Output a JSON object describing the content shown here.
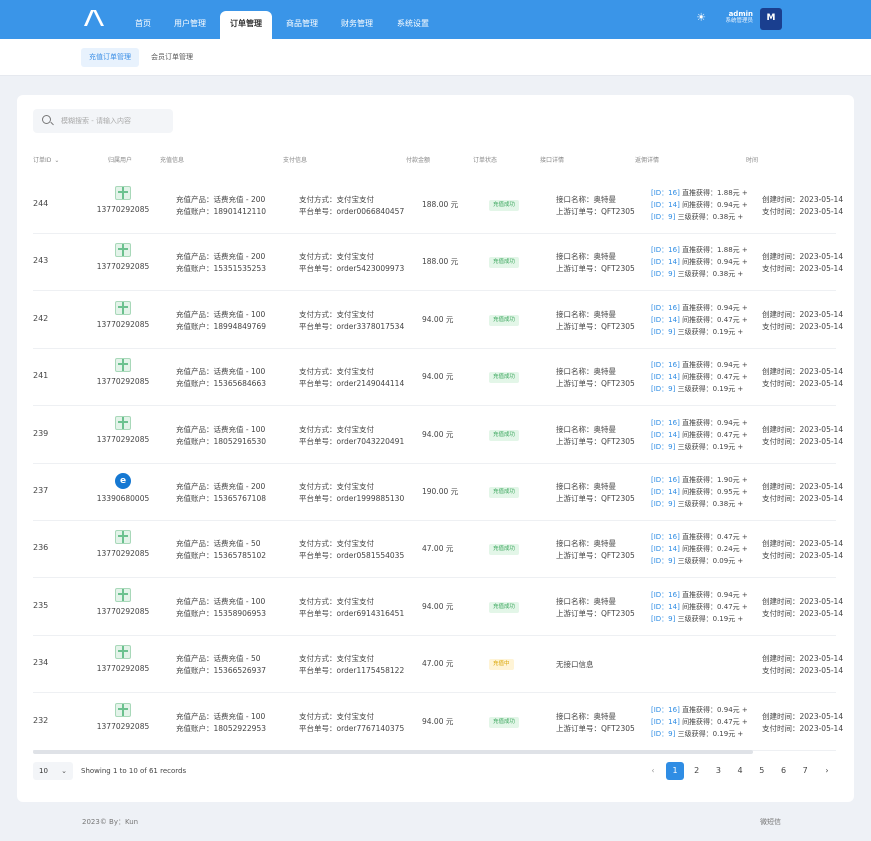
{
  "nav": {
    "items": [
      "首页",
      "用户管理",
      "订单管理",
      "商品管理",
      "财务管理",
      "系统设置"
    ],
    "active_index": 2
  },
  "user": {
    "name": "admin",
    "role": "系统管理员",
    "avatar_text": "M"
  },
  "subnav": {
    "tabs": [
      "充值订单管理",
      "会员订单管理"
    ],
    "active_index": 0
  },
  "search": {
    "placeholder": "模糊搜索 - 请输入内容",
    "value": ""
  },
  "table": {
    "headers": {
      "id": "订单ID",
      "user": "归属用户",
      "info": "充值信息",
      "pay": "支付信息",
      "amount": "付款金额",
      "status": "订单状态",
      "api": "接口详情",
      "rebate": "返佣详情",
      "time": "时间"
    },
    "rows": [
      {
        "id": "244",
        "user_icon": "gift-icon",
        "phone": "13770292085",
        "product": "充值产品：话费充值 - 200",
        "account": "充值账户：18901412110",
        "method": "支付方式：支付宝支付",
        "order_no": "平台单号：order0066840457",
        "amount": "188.00 元",
        "status": "充值成功",
        "status_type": "ok",
        "api_name": "接口名称：奥特曼",
        "api_order": "上游订单号：QFT2305",
        "r1_id": "[ID：16]",
        "r1": "直推获得：1.88元 +",
        "r2_id": "[ID：14]",
        "r2": "间推获得：0.94元 +",
        "r3_id": "[ID：9]",
        "r3": "三级获得：0.38元 +",
        "created": "创建时间：2023-05-14",
        "paid": "支付时间：2023-05-14"
      },
      {
        "id": "243",
        "user_icon": "gift-icon",
        "phone": "13770292085",
        "product": "充值产品：话费充值 - 200",
        "account": "充值账户：15351535253",
        "method": "支付方式：支付宝支付",
        "order_no": "平台单号：order5423009973",
        "amount": "188.00 元",
        "status": "充值成功",
        "status_type": "ok",
        "api_name": "接口名称：奥特曼",
        "api_order": "上游订单号：QFT2305",
        "r1_id": "[ID：16]",
        "r1": "直推获得：1.88元 +",
        "r2_id": "[ID：14]",
        "r2": "间推获得：0.94元 +",
        "r3_id": "[ID：9]",
        "r3": "三级获得：0.38元 +",
        "created": "创建时间：2023-05-14",
        "paid": "支付时间：2023-05-14"
      },
      {
        "id": "242",
        "user_icon": "gift-icon",
        "phone": "13770292085",
        "product": "充值产品：话费充值 - 100",
        "account": "充值账户：18994849769",
        "method": "支付方式：支付宝支付",
        "order_no": "平台单号：order3378017534",
        "amount": "94.00 元",
        "status": "充值成功",
        "status_type": "ok",
        "api_name": "接口名称：奥特曼",
        "api_order": "上游订单号：QFT2305",
        "r1_id": "[ID：16]",
        "r1": "直推获得：0.94元 +",
        "r2_id": "[ID：14]",
        "r2": "间推获得：0.47元 +",
        "r3_id": "[ID：9]",
        "r3": "三级获得：0.19元 +",
        "created": "创建时间：2023-05-14",
        "paid": "支付时间：2023-05-14"
      },
      {
        "id": "241",
        "user_icon": "gift-icon",
        "phone": "13770292085",
        "product": "充值产品：话费充值 - 100",
        "account": "充值账户：15365684663",
        "method": "支付方式：支付宝支付",
        "order_no": "平台单号：order2149044114",
        "amount": "94.00 元",
        "status": "充值成功",
        "status_type": "ok",
        "api_name": "接口名称：奥特曼",
        "api_order": "上游订单号：QFT2305",
        "r1_id": "[ID：16]",
        "r1": "直推获得：0.94元 +",
        "r2_id": "[ID：14]",
        "r2": "间推获得：0.47元 +",
        "r3_id": "[ID：9]",
        "r3": "三级获得：0.19元 +",
        "created": "创建时间：2023-05-14",
        "paid": "支付时间：2023-05-14"
      },
      {
        "id": "239",
        "user_icon": "gift-icon",
        "phone": "13770292085",
        "product": "充值产品：话费充值 - 100",
        "account": "充值账户：18052916530",
        "method": "支付方式：支付宝支付",
        "order_no": "平台单号：order7043220491",
        "amount": "94.00 元",
        "status": "充值成功",
        "status_type": "ok",
        "api_name": "接口名称：奥特曼",
        "api_order": "上游订单号：QFT2305",
        "r1_id": "[ID：16]",
        "r1": "直推获得：0.94元 +",
        "r2_id": "[ID：14]",
        "r2": "间推获得：0.47元 +",
        "r3_id": "[ID：9]",
        "r3": "三级获得：0.19元 +",
        "created": "创建时间：2023-05-14",
        "paid": "支付时间：2023-05-14"
      },
      {
        "id": "237",
        "user_icon": "telecom-icon",
        "phone": "13390680005",
        "product": "充值产品：话费充值 - 200",
        "account": "充值账户：15365767108",
        "method": "支付方式：支付宝支付",
        "order_no": "平台单号：order1999885130",
        "amount": "190.00 元",
        "status": "充值成功",
        "status_type": "ok",
        "api_name": "接口名称：奥特曼",
        "api_order": "上游订单号：QFT2305",
        "r1_id": "[ID：16]",
        "r1": "直推获得：1.90元 +",
        "r2_id": "[ID：14]",
        "r2": "间推获得：0.95元 +",
        "r3_id": "[ID：9]",
        "r3": "三级获得：0.38元 +",
        "created": "创建时间：2023-05-14",
        "paid": "支付时间：2023-05-14"
      },
      {
        "id": "236",
        "user_icon": "gift-icon",
        "phone": "13770292085",
        "product": "充值产品：话费充值 - 50",
        "account": "充值账户：15365785102",
        "method": "支付方式：支付宝支付",
        "order_no": "平台单号：order0581554035",
        "amount": "47.00 元",
        "status": "充值成功",
        "status_type": "ok",
        "api_name": "接口名称：奥特曼",
        "api_order": "上游订单号：QFT2305",
        "r1_id": "[ID：16]",
        "r1": "直推获得：0.47元 +",
        "r2_id": "[ID：14]",
        "r2": "间推获得：0.24元 +",
        "r3_id": "[ID：9]",
        "r3": "三级获得：0.09元 +",
        "created": "创建时间：2023-05-14",
        "paid": "支付时间：2023-05-14"
      },
      {
        "id": "235",
        "user_icon": "gift-icon",
        "phone": "13770292085",
        "product": "充值产品：话费充值 - 100",
        "account": "充值账户：15358906953",
        "method": "支付方式：支付宝支付",
        "order_no": "平台单号：order6914316451",
        "amount": "94.00 元",
        "status": "充值成功",
        "status_type": "ok",
        "api_name": "接口名称：奥特曼",
        "api_order": "上游订单号：QFT2305",
        "r1_id": "[ID：16]",
        "r1": "直推获得：0.94元 +",
        "r2_id": "[ID：14]",
        "r2": "间推获得：0.47元 +",
        "r3_id": "[ID：9]",
        "r3": "三级获得：0.19元 +",
        "created": "创建时间：2023-05-14",
        "paid": "支付时间：2023-05-14"
      },
      {
        "id": "234",
        "user_icon": "gift-icon",
        "phone": "13770292085",
        "product": "充值产品：话费充值 - 50",
        "account": "充值账户：15366526937",
        "method": "支付方式：支付宝支付",
        "order_no": "平台单号：order1175458122",
        "amount": "47.00 元",
        "status": "充值中",
        "status_type": "pending",
        "api_name": "无接口信息",
        "api_order": "",
        "r1_id": "",
        "r1": "",
        "r2_id": "",
        "r2": "",
        "r3_id": "",
        "r3": "",
        "created": "创建时间：2023-05-14",
        "paid": "支付时间：2023-05-14"
      },
      {
        "id": "232",
        "user_icon": "gift-icon",
        "phone": "13770292085",
        "product": "充值产品：话费充值 - 100",
        "account": "充值账户：18052922953",
        "method": "支付方式：支付宝支付",
        "order_no": "平台单号：order7767140375",
        "amount": "94.00 元",
        "status": "充值成功",
        "status_type": "ok",
        "api_name": "接口名称：奥特曼",
        "api_order": "上游订单号：QFT2305",
        "r1_id": "[ID：16]",
        "r1": "直推获得：0.94元 +",
        "r2_id": "[ID：14]",
        "r2": "间推获得：0.47元 +",
        "r3_id": "[ID：9]",
        "r3": "三级获得：0.19元 +",
        "created": "创建时间：2023-05-14",
        "paid": "支付时间：2023-05-14"
      }
    ]
  },
  "pagination": {
    "page_size": "10",
    "records_text": "Showing 1 to 10 of 61 records",
    "pages": [
      "1",
      "2",
      "3",
      "4",
      "5",
      "6",
      "7"
    ],
    "current": "1",
    "prev": "‹",
    "next": "›"
  },
  "footer": {
    "copyright": "2023© By：Kun",
    "right": "微短信"
  },
  "colors": {
    "primary": "#3a95e8",
    "success": "#3aa65c",
    "warning": "#d9a400",
    "link": "#2f8de4"
  }
}
